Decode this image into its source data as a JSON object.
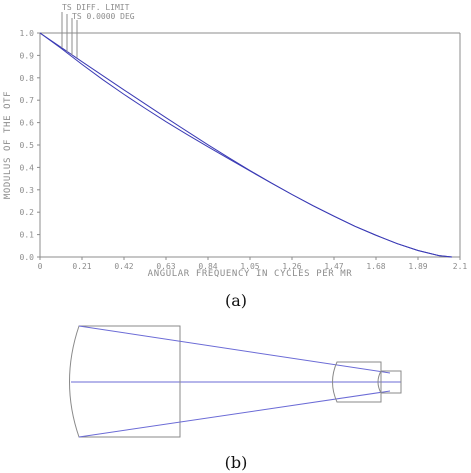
{
  "captions": {
    "a": "(a)",
    "b": "(b)"
  },
  "colors": {
    "axis": "#8c8c8c",
    "curve": "#3b3bb5",
    "lens": "#8a8a8a",
    "ray": "#6b6bd6"
  },
  "chart_data": {
    "type": "line",
    "xlabel": "ANGULAR FREQUENCY IN CYCLES PER MR",
    "ylabel": "MODULUS OF THE OTF",
    "xlim": [
      0,
      2.1
    ],
    "ylim": [
      0,
      1.0
    ],
    "x_ticks": [
      "0",
      "0.21",
      "0.42",
      "0.63",
      "0.84",
      "1.05",
      "1.26",
      "1.47",
      "1.68",
      "1.89",
      "2.1"
    ],
    "y_ticks": [
      "0.0",
      "0.1",
      "0.2",
      "0.3",
      "0.4",
      "0.5",
      "0.6",
      "0.7",
      "0.8",
      "0.9",
      "1.0"
    ],
    "legend": {
      "placement": "top-left",
      "entries": [
        "TS DIFF. LIMIT",
        "TS 0.0000 DEG"
      ]
    },
    "grid": false,
    "series": [
      {
        "name": "TS DIFF. LIMIT",
        "x": [
          0,
          0.105,
          0.21,
          0.315,
          0.42,
          0.525,
          0.63,
          0.735,
          0.84,
          0.945,
          1.05,
          1.155,
          1.26,
          1.365,
          1.47,
          1.575,
          1.68,
          1.785,
          1.89,
          1.995,
          2.06
        ],
        "y": [
          1.0,
          0.936,
          0.872,
          0.809,
          0.746,
          0.684,
          0.622,
          0.561,
          0.501,
          0.443,
          0.386,
          0.331,
          0.279,
          0.229,
          0.182,
          0.137,
          0.097,
          0.06,
          0.029,
          0.006,
          0.0
        ]
      },
      {
        "name": "TS 0.0000 DEG",
        "x": [
          0,
          0.105,
          0.21,
          0.315,
          0.42,
          0.525,
          0.63,
          0.735,
          0.84,
          0.945,
          1.05,
          1.155,
          1.26,
          1.365,
          1.47,
          1.575,
          1.68,
          1.785,
          1.89,
          1.995,
          2.06
        ],
        "y": [
          1.0,
          0.932,
          0.86,
          0.791,
          0.726,
          0.664,
          0.604,
          0.547,
          0.492,
          0.438,
          0.384,
          0.331,
          0.279,
          0.229,
          0.182,
          0.137,
          0.097,
          0.06,
          0.029,
          0.006,
          0.0
        ]
      }
    ]
  }
}
